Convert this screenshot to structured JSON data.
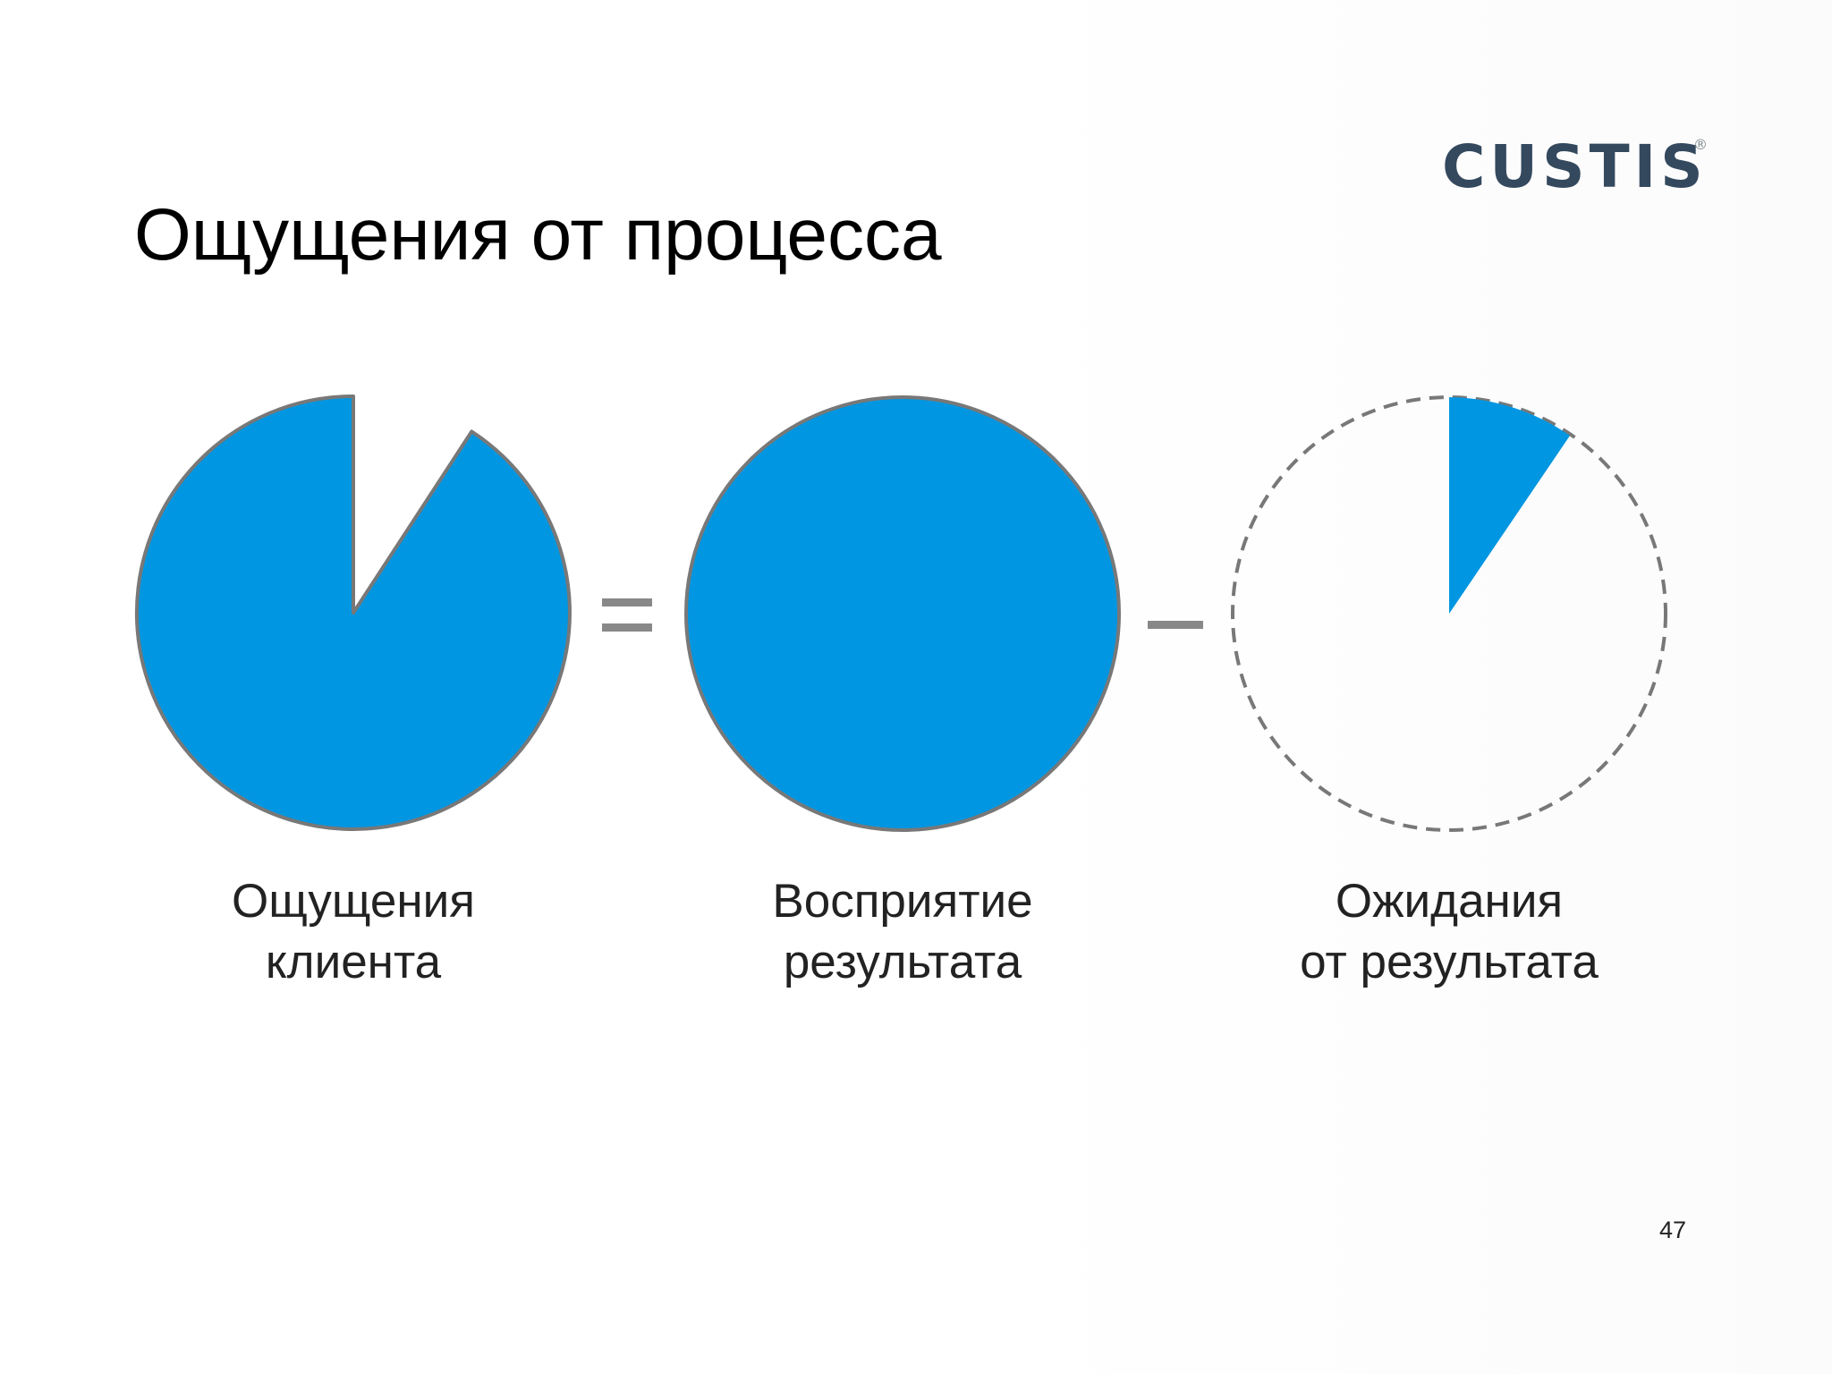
{
  "slide": {
    "title": "Ощущения от процесса",
    "page_number": "47"
  },
  "logo": {
    "text": "CUSTIS",
    "registered_mark": "®",
    "color": "#34495e"
  },
  "colors": {
    "fill": "#0096e1",
    "stroke": "#787878",
    "operator": "#888888"
  },
  "equation": {
    "operators": [
      "=",
      "−"
    ],
    "items": [
      {
        "label_lines": [
          "Ощущения",
          "клиента"
        ],
        "filled_fraction": 0.9
      },
      {
        "label_lines": [
          "Восприятие",
          "результата"
        ],
        "filled_fraction": 1.0
      },
      {
        "label_lines": [
          "Ожидания",
          "от результата"
        ],
        "filled_fraction": 0.1
      }
    ]
  }
}
